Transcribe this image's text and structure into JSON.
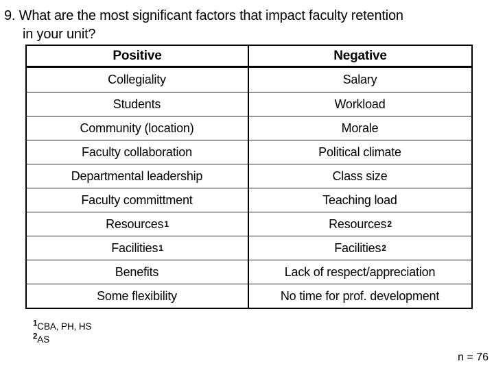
{
  "slide": {
    "title": {
      "number": "9.",
      "line1": "What are the most significant factors that impact faculty retention",
      "line2": "in your unit?"
    },
    "table": {
      "headers": {
        "positive": "Positive",
        "negative": "Negative"
      },
      "rows": [
        {
          "pos": "Collegiality",
          "pos_sup": "",
          "neg": "Salary",
          "neg_sup": ""
        },
        {
          "pos": "Students",
          "pos_sup": "",
          "neg": "Workload",
          "neg_sup": ""
        },
        {
          "pos": "Community (location)",
          "pos_sup": "",
          "neg": "Morale",
          "neg_sup": ""
        },
        {
          "pos": "Faculty collaboration",
          "pos_sup": "",
          "neg": "Political climate",
          "neg_sup": ""
        },
        {
          "pos": "Departmental leadership",
          "pos_sup": "",
          "neg": "Class size",
          "neg_sup": ""
        },
        {
          "pos": "Faculty committment",
          "pos_sup": "",
          "neg": "Teaching load",
          "neg_sup": ""
        },
        {
          "pos": "Resources",
          "pos_sup": "1",
          "neg": "Resources",
          "neg_sup": "2"
        },
        {
          "pos": "Facilities",
          "pos_sup": "1",
          "neg": "Facilities",
          "neg_sup": "2"
        },
        {
          "pos": "Benefits",
          "pos_sup": "",
          "neg": "Lack of respect/appreciation",
          "neg_sup": ""
        },
        {
          "pos": "Some flexibility",
          "pos_sup": "",
          "neg": "No time for prof. development",
          "neg_sup": ""
        }
      ]
    },
    "footnotes": [
      {
        "sup": "1",
        "text": "CBA, PH, HS"
      },
      {
        "sup": "2",
        "text": "AS"
      }
    ],
    "sample_size": "n = 76",
    "colors": {
      "background": "#ffffff",
      "text": "#000000",
      "table_line": "#000000"
    }
  }
}
